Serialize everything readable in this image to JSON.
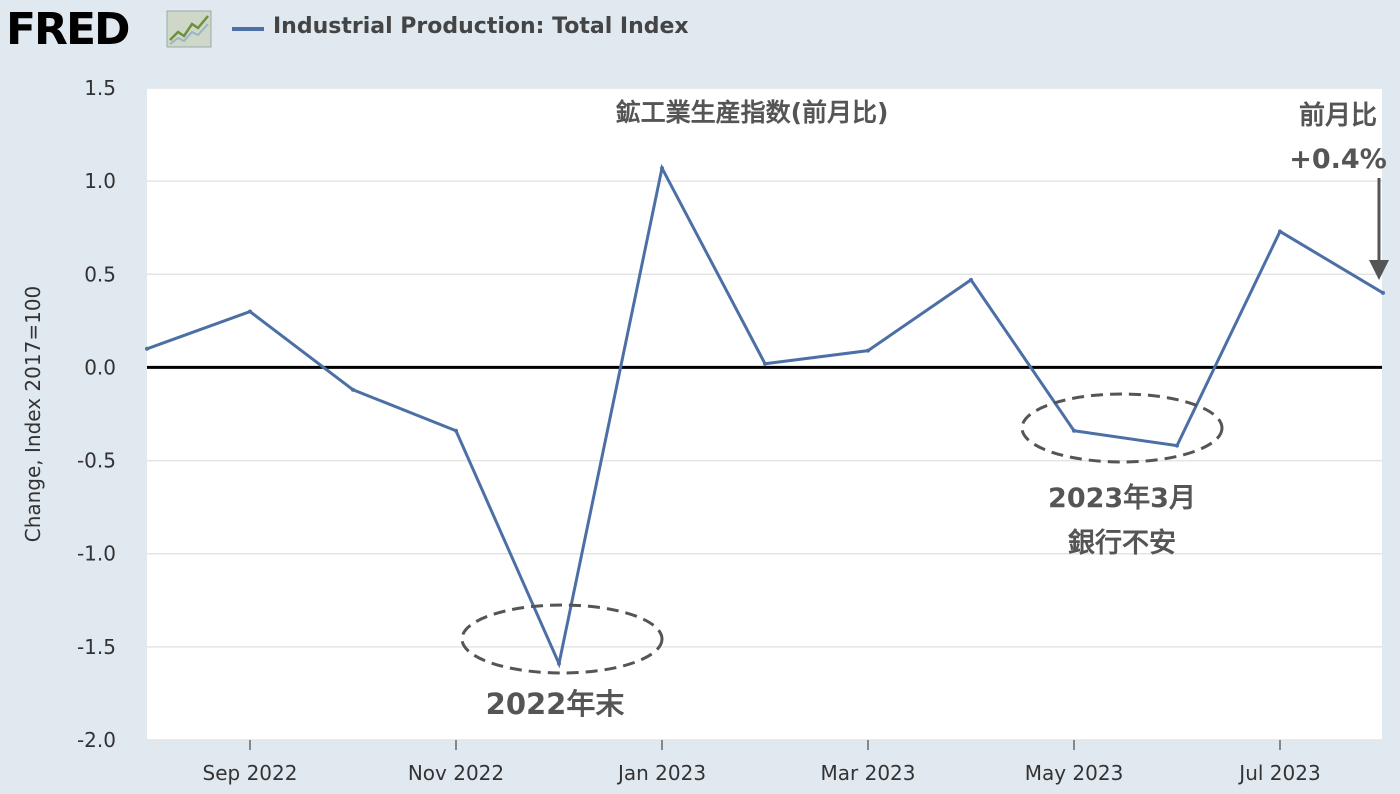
{
  "header": {
    "logo": "FRED",
    "series_title": "Industrial Production: Total Index"
  },
  "colors": {
    "background": "#e1e9f0",
    "plot_background": "#ffffff",
    "series": "#4c6fa5",
    "zero_line": "#000000",
    "annotation": "#555555"
  },
  "chart_data": {
    "type": "line",
    "title": "鉱工業生産指数(前月比)",
    "xlabel": "",
    "ylabel": "Change, Index 2017=100",
    "ylim": [
      -2.0,
      1.5
    ],
    "yticks": [
      "1.5",
      "1.0",
      "0.5",
      "0.0",
      "-0.5",
      "-1.0",
      "-1.5",
      "-2.0"
    ],
    "xticks": [
      "Sep 2022",
      "Nov 2022",
      "Jan 2023",
      "Mar 2023",
      "May 2023",
      "Jul 2023"
    ],
    "grid": "horizontal",
    "series": [
      {
        "x": [
          "2022-08",
          "2022-09",
          "2022-10",
          "2022-11",
          "2022-12",
          "2023-01",
          "2023-02",
          "2023-03",
          "2023-04",
          "2023-05",
          "2023-06",
          "2023-07",
          "2023-08"
        ],
        "values": [
          0.1,
          0.3,
          -0.12,
          -0.34,
          -1.59,
          1.07,
          0.02,
          0.09,
          0.47,
          -0.34,
          -0.42,
          0.73,
          0.4
        ]
      }
    ],
    "annotations": [
      {
        "text": "2022年末",
        "target": "2022-12"
      },
      {
        "text": "2023年3月",
        "text2": "銀行不安",
        "target": "2023-05/2023-06"
      },
      {
        "text": "前月比",
        "text2": "+0.4%",
        "target": "2023-08"
      }
    ]
  }
}
